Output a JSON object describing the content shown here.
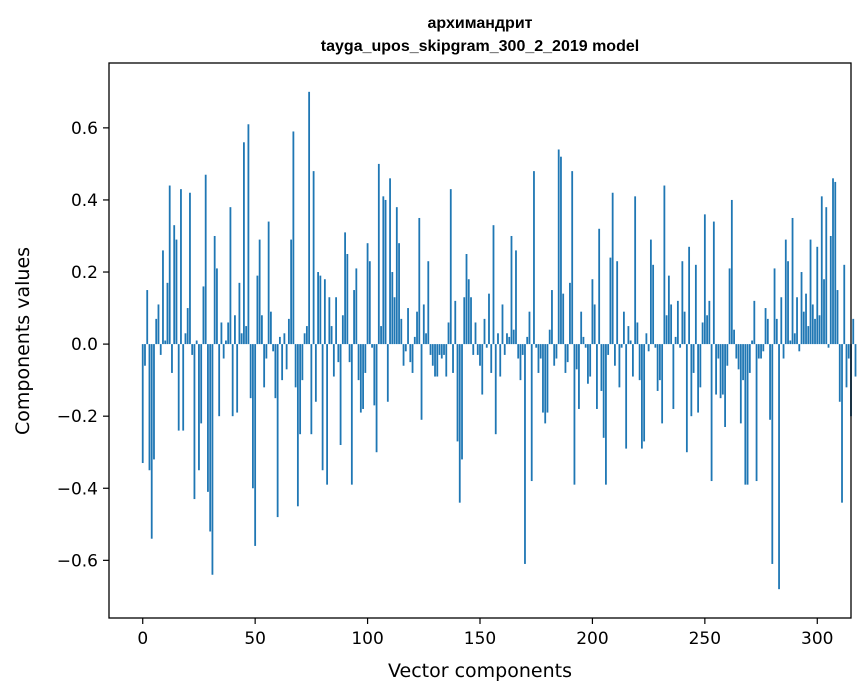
{
  "chart_data": {
    "type": "bar",
    "title": "архимандрит",
    "subtitle": "tayga_upos_skipgram_300_2_2019 model",
    "xlabel": "Vector components",
    "ylabel": "Components values",
    "xlim": [
      -15,
      315
    ],
    "ylim": [
      -0.76,
      0.78
    ],
    "xticks": [
      0,
      50,
      100,
      150,
      200,
      250,
      300
    ],
    "yticks": [
      -0.6,
      -0.4,
      -0.2,
      0.0,
      0.2,
      0.4,
      0.6
    ],
    "xtick_labels": [
      "0",
      "50",
      "100",
      "150",
      "200",
      "250",
      "300"
    ],
    "ytick_labels": [
      "−0.6",
      "−0.4",
      "−0.2",
      "0.0",
      "0.2",
      "0.4",
      "0.6"
    ],
    "bar_color": "#1f77b4",
    "grid": false,
    "x_start": 0,
    "values": [
      -0.33,
      -0.06,
      0.15,
      -0.35,
      -0.54,
      -0.32,
      0.07,
      0.11,
      -0.03,
      0.26,
      0.01,
      0.17,
      0.44,
      -0.08,
      0.33,
      0.29,
      -0.24,
      0.43,
      -0.24,
      0.03,
      0.1,
      0.42,
      -0.03,
      -0.43,
      0.01,
      -0.35,
      -0.22,
      0.16,
      0.47,
      -0.41,
      -0.52,
      -0.64,
      0.3,
      0.21,
      -0.2,
      0.06,
      -0.04,
      0.01,
      0.06,
      0.38,
      -0.2,
      0.08,
      -0.19,
      0.17,
      0.03,
      0.56,
      0.05,
      0.61,
      -0.15,
      -0.4,
      -0.56,
      0.19,
      0.29,
      0.08,
      -0.12,
      -0.04,
      0.34,
      0.09,
      -0.02,
      -0.15,
      -0.48,
      0.02,
      -0.1,
      0.03,
      -0.07,
      0.07,
      0.29,
      0.59,
      -0.12,
      -0.45,
      -0.25,
      -0.1,
      0.03,
      0.05,
      0.7,
      -0.25,
      0.48,
      -0.16,
      0.2,
      0.19,
      -0.35,
      0.18,
      -0.39,
      0.13,
      0.05,
      -0.09,
      0.13,
      -0.05,
      -0.28,
      0.08,
      0.31,
      0.25,
      -0.05,
      -0.39,
      0.15,
      0.21,
      -0.1,
      -0.19,
      -0.18,
      -0.08,
      0.28,
      0.23,
      -0.01,
      -0.17,
      -0.3,
      0.5,
      0.05,
      0.41,
      0.4,
      -0.16,
      0.46,
      0.2,
      0.13,
      0.38,
      0.28,
      0.07,
      -0.06,
      -0.02,
      0.1,
      -0.05,
      -0.08,
      0.02,
      0.09,
      0.35,
      -0.21,
      0.11,
      0.03,
      0.23,
      -0.03,
      -0.06,
      -0.09,
      -0.09,
      -0.03,
      -0.04,
      -0.03,
      -0.09,
      0.06,
      0.43,
      -0.08,
      0.12,
      -0.27,
      -0.44,
      -0.32,
      0.13,
      0.25,
      0.18,
      0.13,
      -0.03,
      0.06,
      -0.03,
      -0.06,
      -0.14,
      0.07,
      -0.01,
      0.14,
      -0.08,
      0.33,
      -0.25,
      0.03,
      -0.09,
      0.11,
      -0.03,
      0.03,
      0.02,
      0.3,
      0.04,
      0.26,
      -0.04,
      -0.1,
      -0.03,
      -0.61,
      0.02,
      0.09,
      -0.38,
      0.48,
      -0.01,
      -0.08,
      -0.04,
      -0.19,
      -0.22,
      -0.19,
      0.04,
      0.15,
      -0.06,
      -0.04,
      0.54,
      0.52,
      0.14,
      -0.08,
      -0.05,
      0.17,
      0.48,
      -0.39,
      -0.07,
      -0.18,
      0.09,
      0.02,
      -0.01,
      -0.11,
      -0.09,
      0.18,
      0.11,
      -0.18,
      0.32,
      -0.13,
      -0.26,
      -0.39,
      -0.03,
      0.24,
      0.42,
      -0.06,
      0.23,
      -0.12,
      -0.01,
      0.09,
      -0.29,
      0.05,
      0.01,
      -0.09,
      0.41,
      0.06,
      -0.1,
      -0.29,
      -0.27,
      0.03,
      -0.02,
      0.29,
      0.22,
      -0.01,
      -0.13,
      -0.1,
      -0.22,
      0.44,
      0.08,
      0.19,
      0.11,
      -0.18,
      0.02,
      0.12,
      -0.01,
      0.23,
      0.09,
      -0.3,
      0.27,
      -0.2,
      -0.08,
      0.22,
      -0.19,
      -0.12,
      0.06,
      0.36,
      0.08,
      0.12,
      -0.38,
      0.34,
      -0.14,
      -0.04,
      -0.15,
      -0.14,
      -0.23,
      -0.06,
      0.21,
      0.4,
      0.04,
      -0.04,
      -0.07,
      -0.22,
      -0.1,
      -0.39,
      -0.39,
      -0.08,
      0.01,
      0.12,
      -0.38,
      -0.04,
      -0.04,
      -0.02,
      0.1,
      0.07,
      -0.21,
      -0.61,
      0.21,
      0.07,
      -0.68,
      0.13,
      -0.04,
      0.29,
      0.23,
      0.01,
      0.35,
      0.03,
      0.13,
      -0.02,
      0.2,
      0.09,
      0.14,
      0.05,
      0.29,
      0.11,
      0.07,
      0.27,
      0.08,
      0.41,
      0.18,
      0.38,
      -0.01,
      0.3,
      0.46,
      0.45,
      0.15,
      -0.16,
      -0.44,
      0.22,
      -0.12,
      -0.04,
      -0.2,
      0.07,
      -0.09
    ]
  }
}
